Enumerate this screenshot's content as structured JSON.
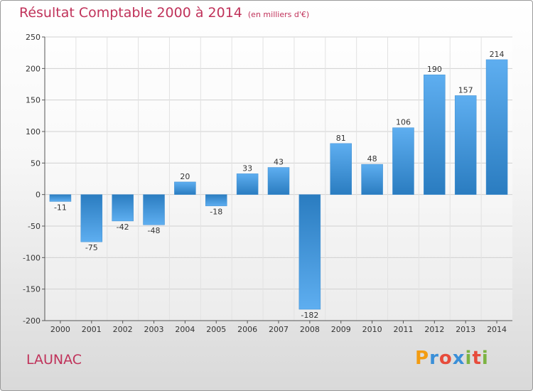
{
  "title": "Résultat Comptable 2000 à 2014",
  "subtitle": "(en milliers d'€)",
  "town": "LAUNAC",
  "logo_text": "Proxiti",
  "colors": {
    "accent": "#c0325a",
    "bar_light": "#5eaef0",
    "bar_dark": "#2a7cc0"
  },
  "chart_data": {
    "type": "bar",
    "title": "Résultat Comptable 2000 à 2014",
    "xlabel": "",
    "ylabel": "",
    "categories": [
      "2000",
      "2001",
      "2002",
      "2003",
      "2004",
      "2005",
      "2006",
      "2007",
      "2008",
      "2009",
      "2010",
      "2011",
      "2012",
      "2013",
      "2014"
    ],
    "values": [
      -11,
      -75,
      -42,
      -48,
      20,
      -18,
      33,
      43,
      -182,
      81,
      48,
      106,
      190,
      157,
      214
    ],
    "value_labels": [
      "-11",
      "-75",
      "-42",
      "-48",
      "20",
      "-18",
      "33",
      "43",
      "-182",
      "81",
      "48",
      "106",
      "190",
      "157",
      "214"
    ],
    "ylim": [
      -200,
      250
    ],
    "yticks": [
      250,
      200,
      150,
      100,
      50,
      0,
      -50,
      -100,
      -150,
      -200
    ],
    "ytick_labels": [
      "250",
      "200",
      "150",
      "100",
      "50",
      "0",
      "-50",
      "-100",
      "-150",
      "-200"
    ],
    "grid": true,
    "legend": "none"
  }
}
